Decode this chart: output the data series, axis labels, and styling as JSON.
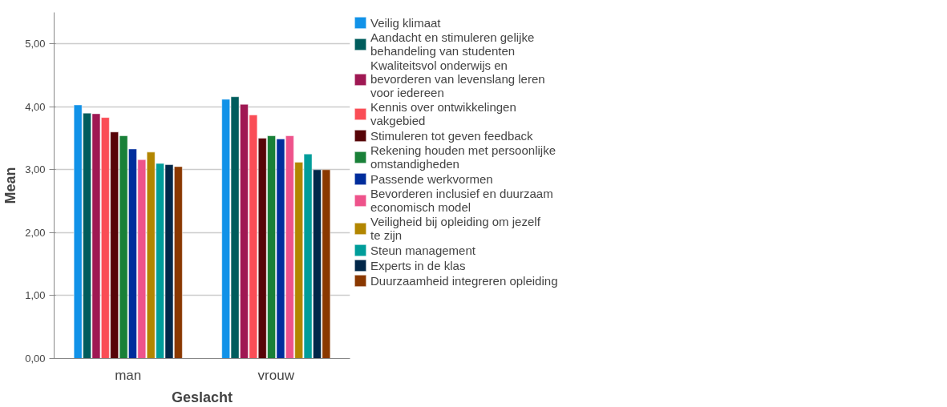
{
  "chart_data": {
    "type": "bar",
    "xlabel": "Geslacht",
    "ylabel": "Mean",
    "categories": [
      "man",
      "vrouw"
    ],
    "ylim": [
      0,
      5.5
    ],
    "yticks": [
      {
        "value": 0,
        "label": "0,00"
      },
      {
        "value": 1,
        "label": "1,00"
      },
      {
        "value": 2,
        "label": "2,00"
      },
      {
        "value": 3,
        "label": "3,00"
      },
      {
        "value": 4,
        "label": "4,00"
      },
      {
        "value": 5,
        "label": "5,00"
      }
    ],
    "grid": "y",
    "legend": "right",
    "series": [
      {
        "name": "Veilig klimaat",
        "color": "#1192e8",
        "values": [
          4.03,
          4.12
        ]
      },
      {
        "name": "Aandacht en stimuleren gelijke behandeling van studenten",
        "color": "#005d5d",
        "values": [
          3.9,
          4.16
        ]
      },
      {
        "name": "Kwaliteitsvol onderwijs en bevorderen van levenslang leren voor iedereen",
        "color": "#9f1853",
        "values": [
          3.89,
          4.04
        ]
      },
      {
        "name": "Kennis over ontwikkelingen vakgebied",
        "color": "#fa4d56",
        "values": [
          3.83,
          3.87
        ]
      },
      {
        "name": "Stimuleren tot geven feedback",
        "color": "#570408",
        "values": [
          3.6,
          3.5
        ]
      },
      {
        "name": "Rekening houden met persoonlijke omstandigheden",
        "color": "#198038",
        "values": [
          3.54,
          3.54
        ]
      },
      {
        "name": "Passende werkvormen",
        "color": "#002d9c",
        "values": [
          3.33,
          3.49
        ]
      },
      {
        "name": "Bevorderen inclusief en duurzaam economisch model",
        "color": "#ee538b",
        "values": [
          3.16,
          3.54
        ]
      },
      {
        "name": "Veiligheid bij opleiding om jezelf te zijn",
        "color": "#b28600",
        "values": [
          3.28,
          3.12
        ]
      },
      {
        "name": "Steun management",
        "color": "#009d9a",
        "values": [
          3.1,
          3.25
        ]
      },
      {
        "name": "Experts in de klas",
        "color": "#012749",
        "values": [
          3.08,
          3.0
        ]
      },
      {
        "name": "Duurzaamheid integreren opleiding",
        "color": "#8a3800",
        "values": [
          3.05,
          3.0
        ]
      }
    ]
  }
}
